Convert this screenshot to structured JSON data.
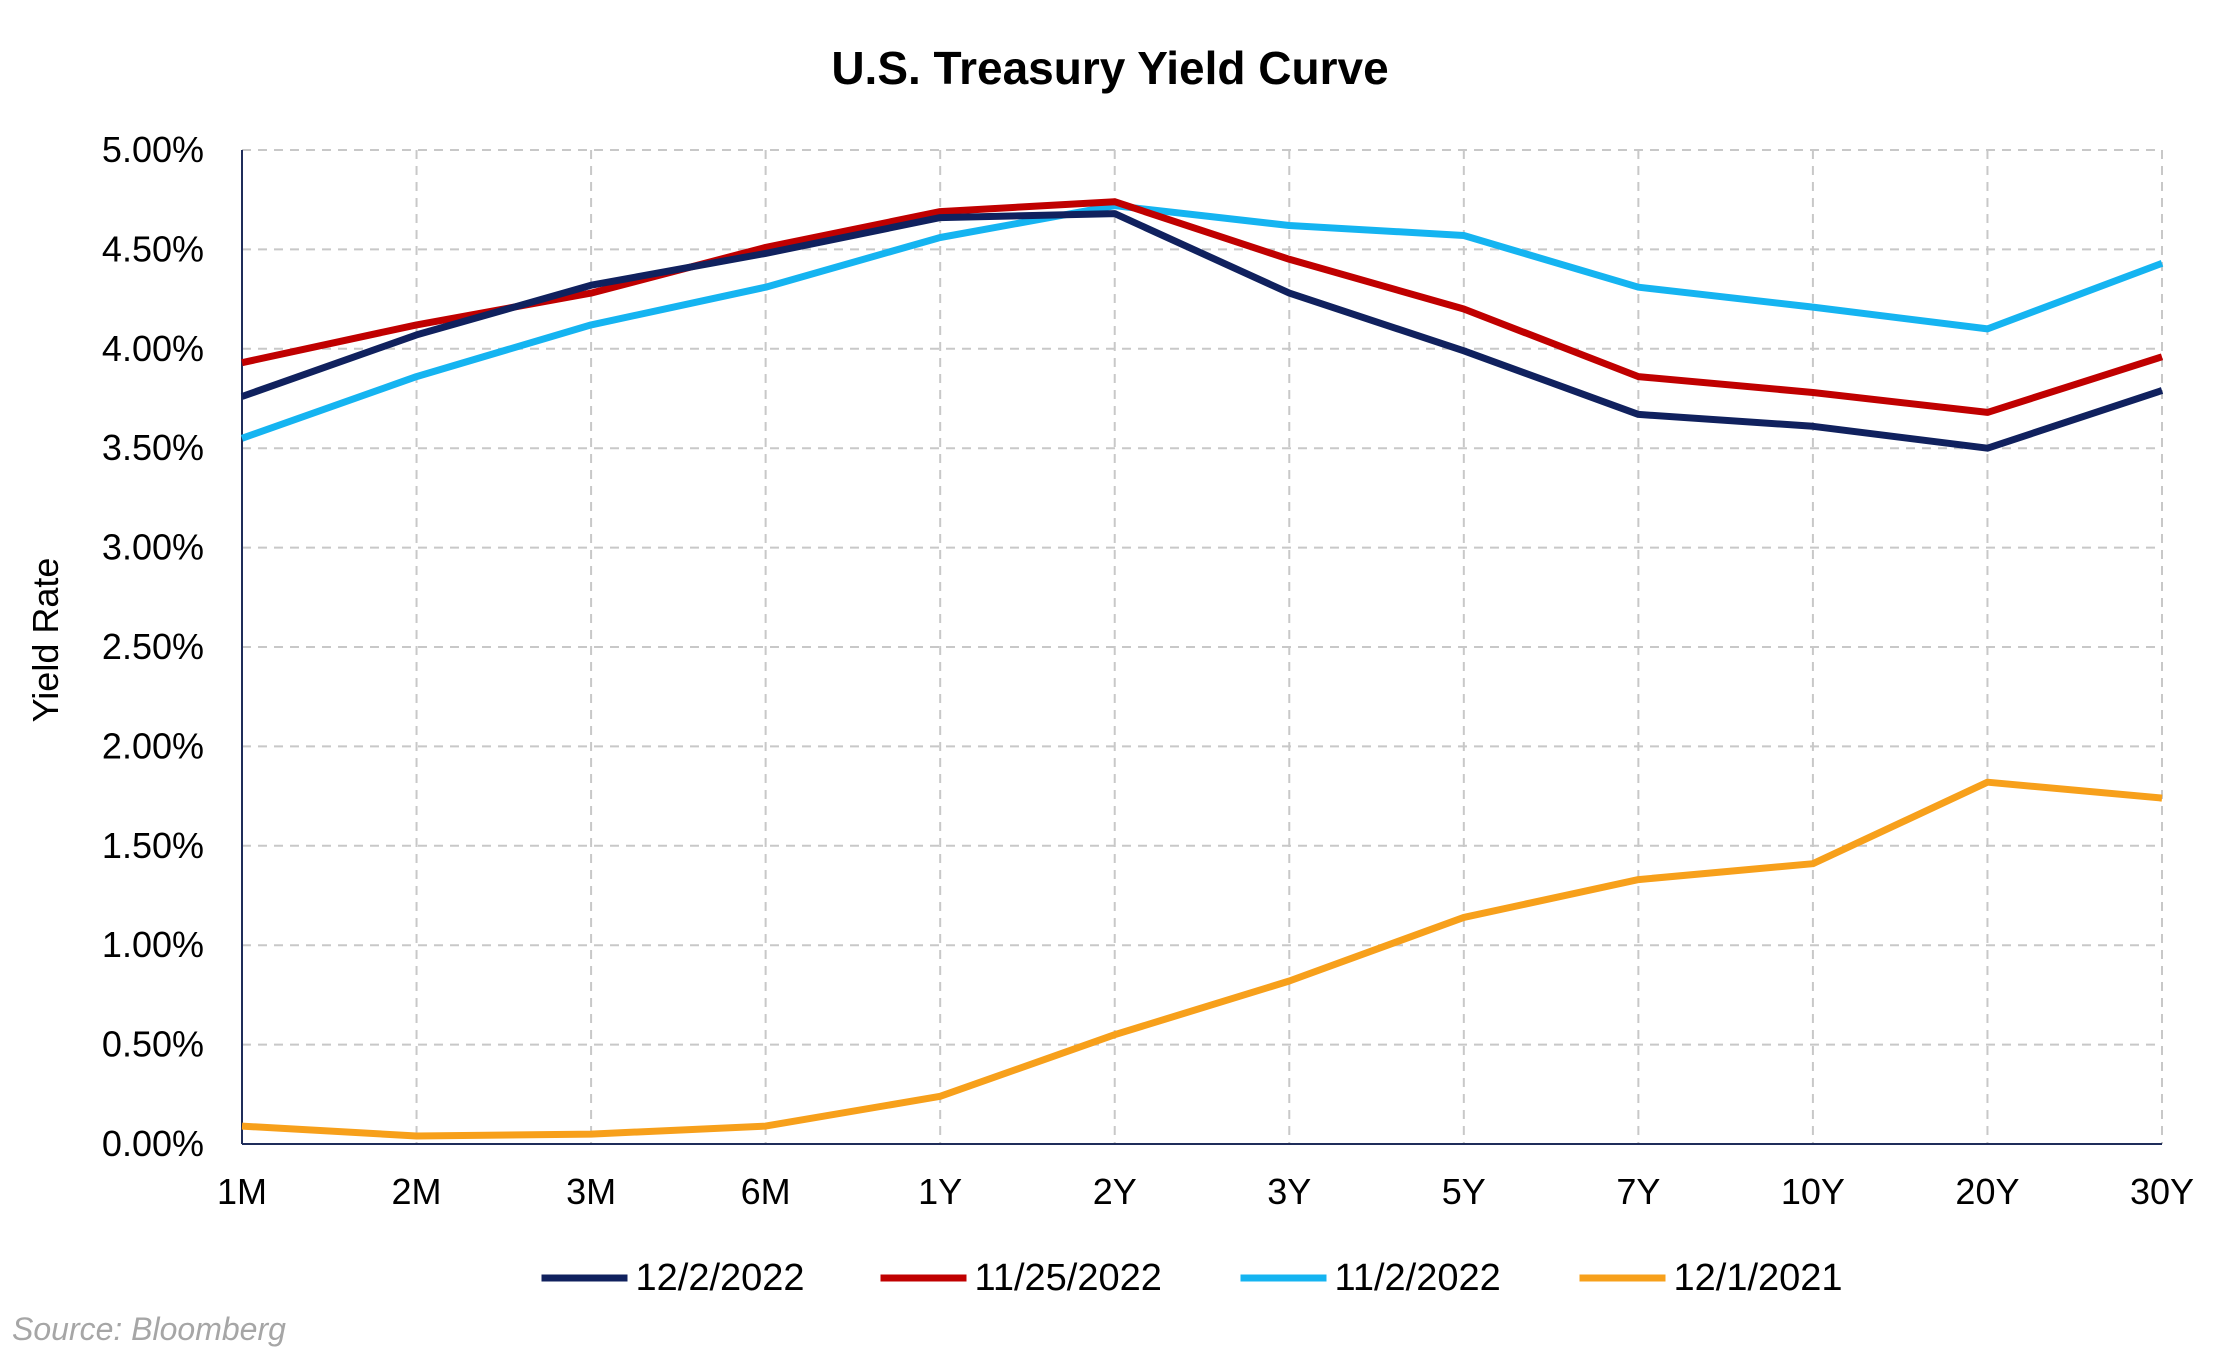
{
  "chart_data": {
    "type": "line",
    "title": "U.S. Treasury Yield Curve",
    "xlabel": "",
    "ylabel": "Yield Rate",
    "categories": [
      "1M",
      "2M",
      "3M",
      "6M",
      "1Y",
      "2Y",
      "3Y",
      "5Y",
      "7Y",
      "10Y",
      "20Y",
      "30Y"
    ],
    "ylim": [
      0,
      5
    ],
    "yticks": [
      0,
      0.5,
      1,
      1.5,
      2,
      2.5,
      3,
      3.5,
      4,
      4.5,
      5
    ],
    "ytick_labels": [
      "0.00%",
      "0.50%",
      "1.00%",
      "1.50%",
      "2.00%",
      "2.50%",
      "3.00%",
      "3.50%",
      "4.00%",
      "4.50%",
      "5.00%"
    ],
    "grid": true,
    "legend_position": "bottom",
    "series": [
      {
        "name": "12/2/2022",
        "color": "#10215e",
        "values": [
          3.76,
          4.07,
          4.32,
          4.48,
          4.66,
          4.68,
          4.28,
          3.99,
          3.67,
          3.61,
          3.5,
          3.79
        ]
      },
      {
        "name": "11/25/2022",
        "color": "#c00000",
        "values": [
          3.93,
          4.12,
          4.28,
          4.51,
          4.69,
          4.74,
          4.45,
          4.2,
          3.86,
          3.78,
          3.68,
          3.96
        ]
      },
      {
        "name": "11/2/2022",
        "color": "#15b4f1",
        "values": [
          3.55,
          3.86,
          4.12,
          4.31,
          4.56,
          4.72,
          4.62,
          4.57,
          4.31,
          4.21,
          4.1,
          4.43
        ]
      },
      {
        "name": "12/1/2021",
        "color": "#f7a01b",
        "values": [
          0.09,
          0.04,
          0.05,
          0.09,
          0.24,
          0.55,
          0.82,
          1.14,
          1.33,
          1.41,
          1.82,
          1.74
        ]
      }
    ]
  },
  "footer": {
    "source": "Source: Bloomberg"
  }
}
